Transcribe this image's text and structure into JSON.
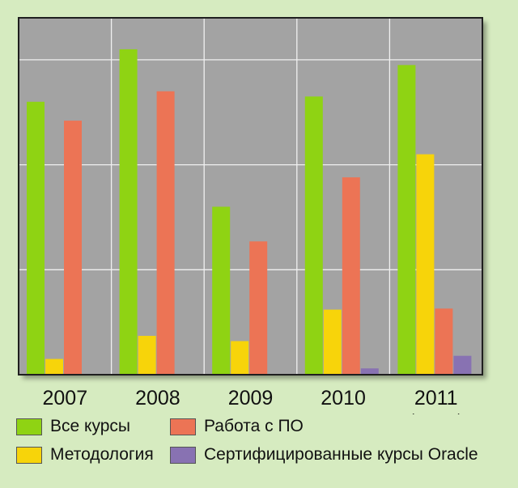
{
  "chart_data": {
    "type": "bar",
    "categories": [
      "2007",
      "2008",
      "2009",
      "2010",
      "2011"
    ],
    "category_notes": [
      "",
      "",
      "",
      "",
      "(прогноз)"
    ],
    "series": [
      {
        "name": "Все курсы",
        "color": "#8fd313",
        "values": [
          2.6,
          3.1,
          1.6,
          2.65,
          2.95
        ]
      },
      {
        "name": "Методология",
        "color": "#f7d40a",
        "values": [
          0.15,
          0.37,
          0.32,
          0.62,
          2.1
        ]
      },
      {
        "name": "Работа с ПО",
        "color": "#ec7455",
        "values": [
          2.42,
          2.7,
          1.27,
          1.88,
          0.63
        ]
      },
      {
        "name": "Сертифицированные курсы Oracle",
        "color": "#8872b2",
        "values": [
          0,
          0,
          0,
          0.06,
          0.18
        ]
      }
    ],
    "ylim": [
      0,
      3.4
    ],
    "y_gridlines": [
      0,
      1,
      2,
      3
    ],
    "grid": true,
    "title": "",
    "xlabel": "",
    "ylabel": "",
    "legend_position": "bottom"
  },
  "legend": {
    "all_courses": "Все курсы",
    "software": "Работа с ПО",
    "methodology": "Методология",
    "oracle": "Сертифицированные курсы Oracle"
  },
  "colors": {
    "background": "#d6ebc0",
    "plot_background": "#a3a3a3",
    "frame": "#1f1f1f",
    "grid": "#f0f0f0"
  }
}
